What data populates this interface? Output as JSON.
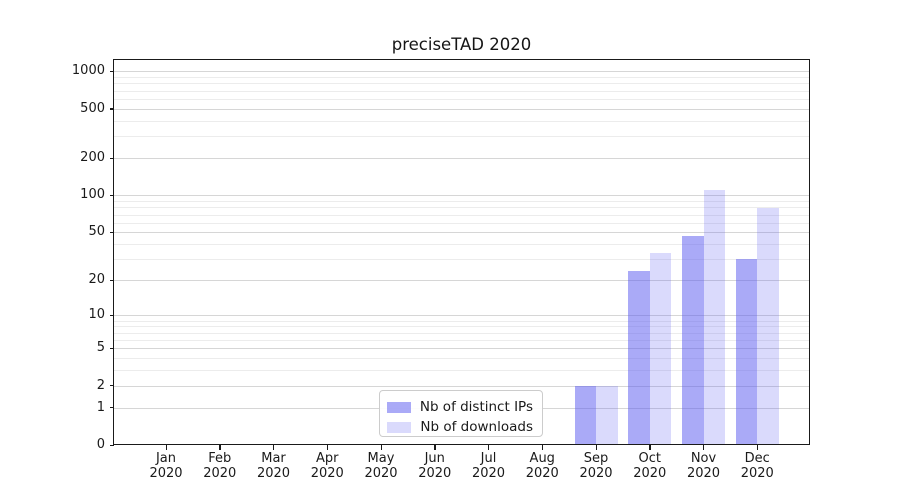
{
  "chart_data": {
    "type": "bar",
    "title": "preciseTAD 2020",
    "categories": [
      "Jan 2020",
      "Feb 2020",
      "Mar 2020",
      "Apr 2020",
      "May 2020",
      "Jun 2020",
      "Jul 2020",
      "Aug 2020",
      "Sep 2020",
      "Oct 2020",
      "Nov 2020",
      "Dec 2020"
    ],
    "series": [
      {
        "name": "Nb of distinct IPs",
        "color": "rgba(85,85,240,0.5)",
        "values": [
          0,
          0,
          0,
          0,
          0,
          0,
          0,
          0,
          2,
          24,
          47,
          30
        ]
      },
      {
        "name": "Nb of downloads",
        "color": "rgba(85,85,240,0.22)",
        "values": [
          0,
          0,
          0,
          0,
          0,
          0,
          0,
          0,
          2,
          34,
          111,
          79
        ]
      }
    ],
    "xlabel": "",
    "ylabel": "",
    "y_scale": "log1p",
    "y_ticks": [
      0,
      1,
      2,
      5,
      10,
      20,
      50,
      100,
      200,
      500,
      1000
    ],
    "y_minor_ticks": [
      3,
      4,
      6,
      7,
      8,
      9,
      30,
      40,
      60,
      70,
      80,
      90,
      300,
      400,
      600,
      700,
      800,
      900
    ],
    "ylim": [
      0,
      1260
    ],
    "grid": "on",
    "legend_position": "lower center"
  },
  "colors": {
    "bar_dark": "rgba(85,85,240,0.5)",
    "bar_light": "rgba(85,85,240,0.22)",
    "grid_major": "#d6d6d6",
    "grid_minor": "#ececec",
    "axis": "#1a1a1a",
    "background": "#ffffff"
  }
}
